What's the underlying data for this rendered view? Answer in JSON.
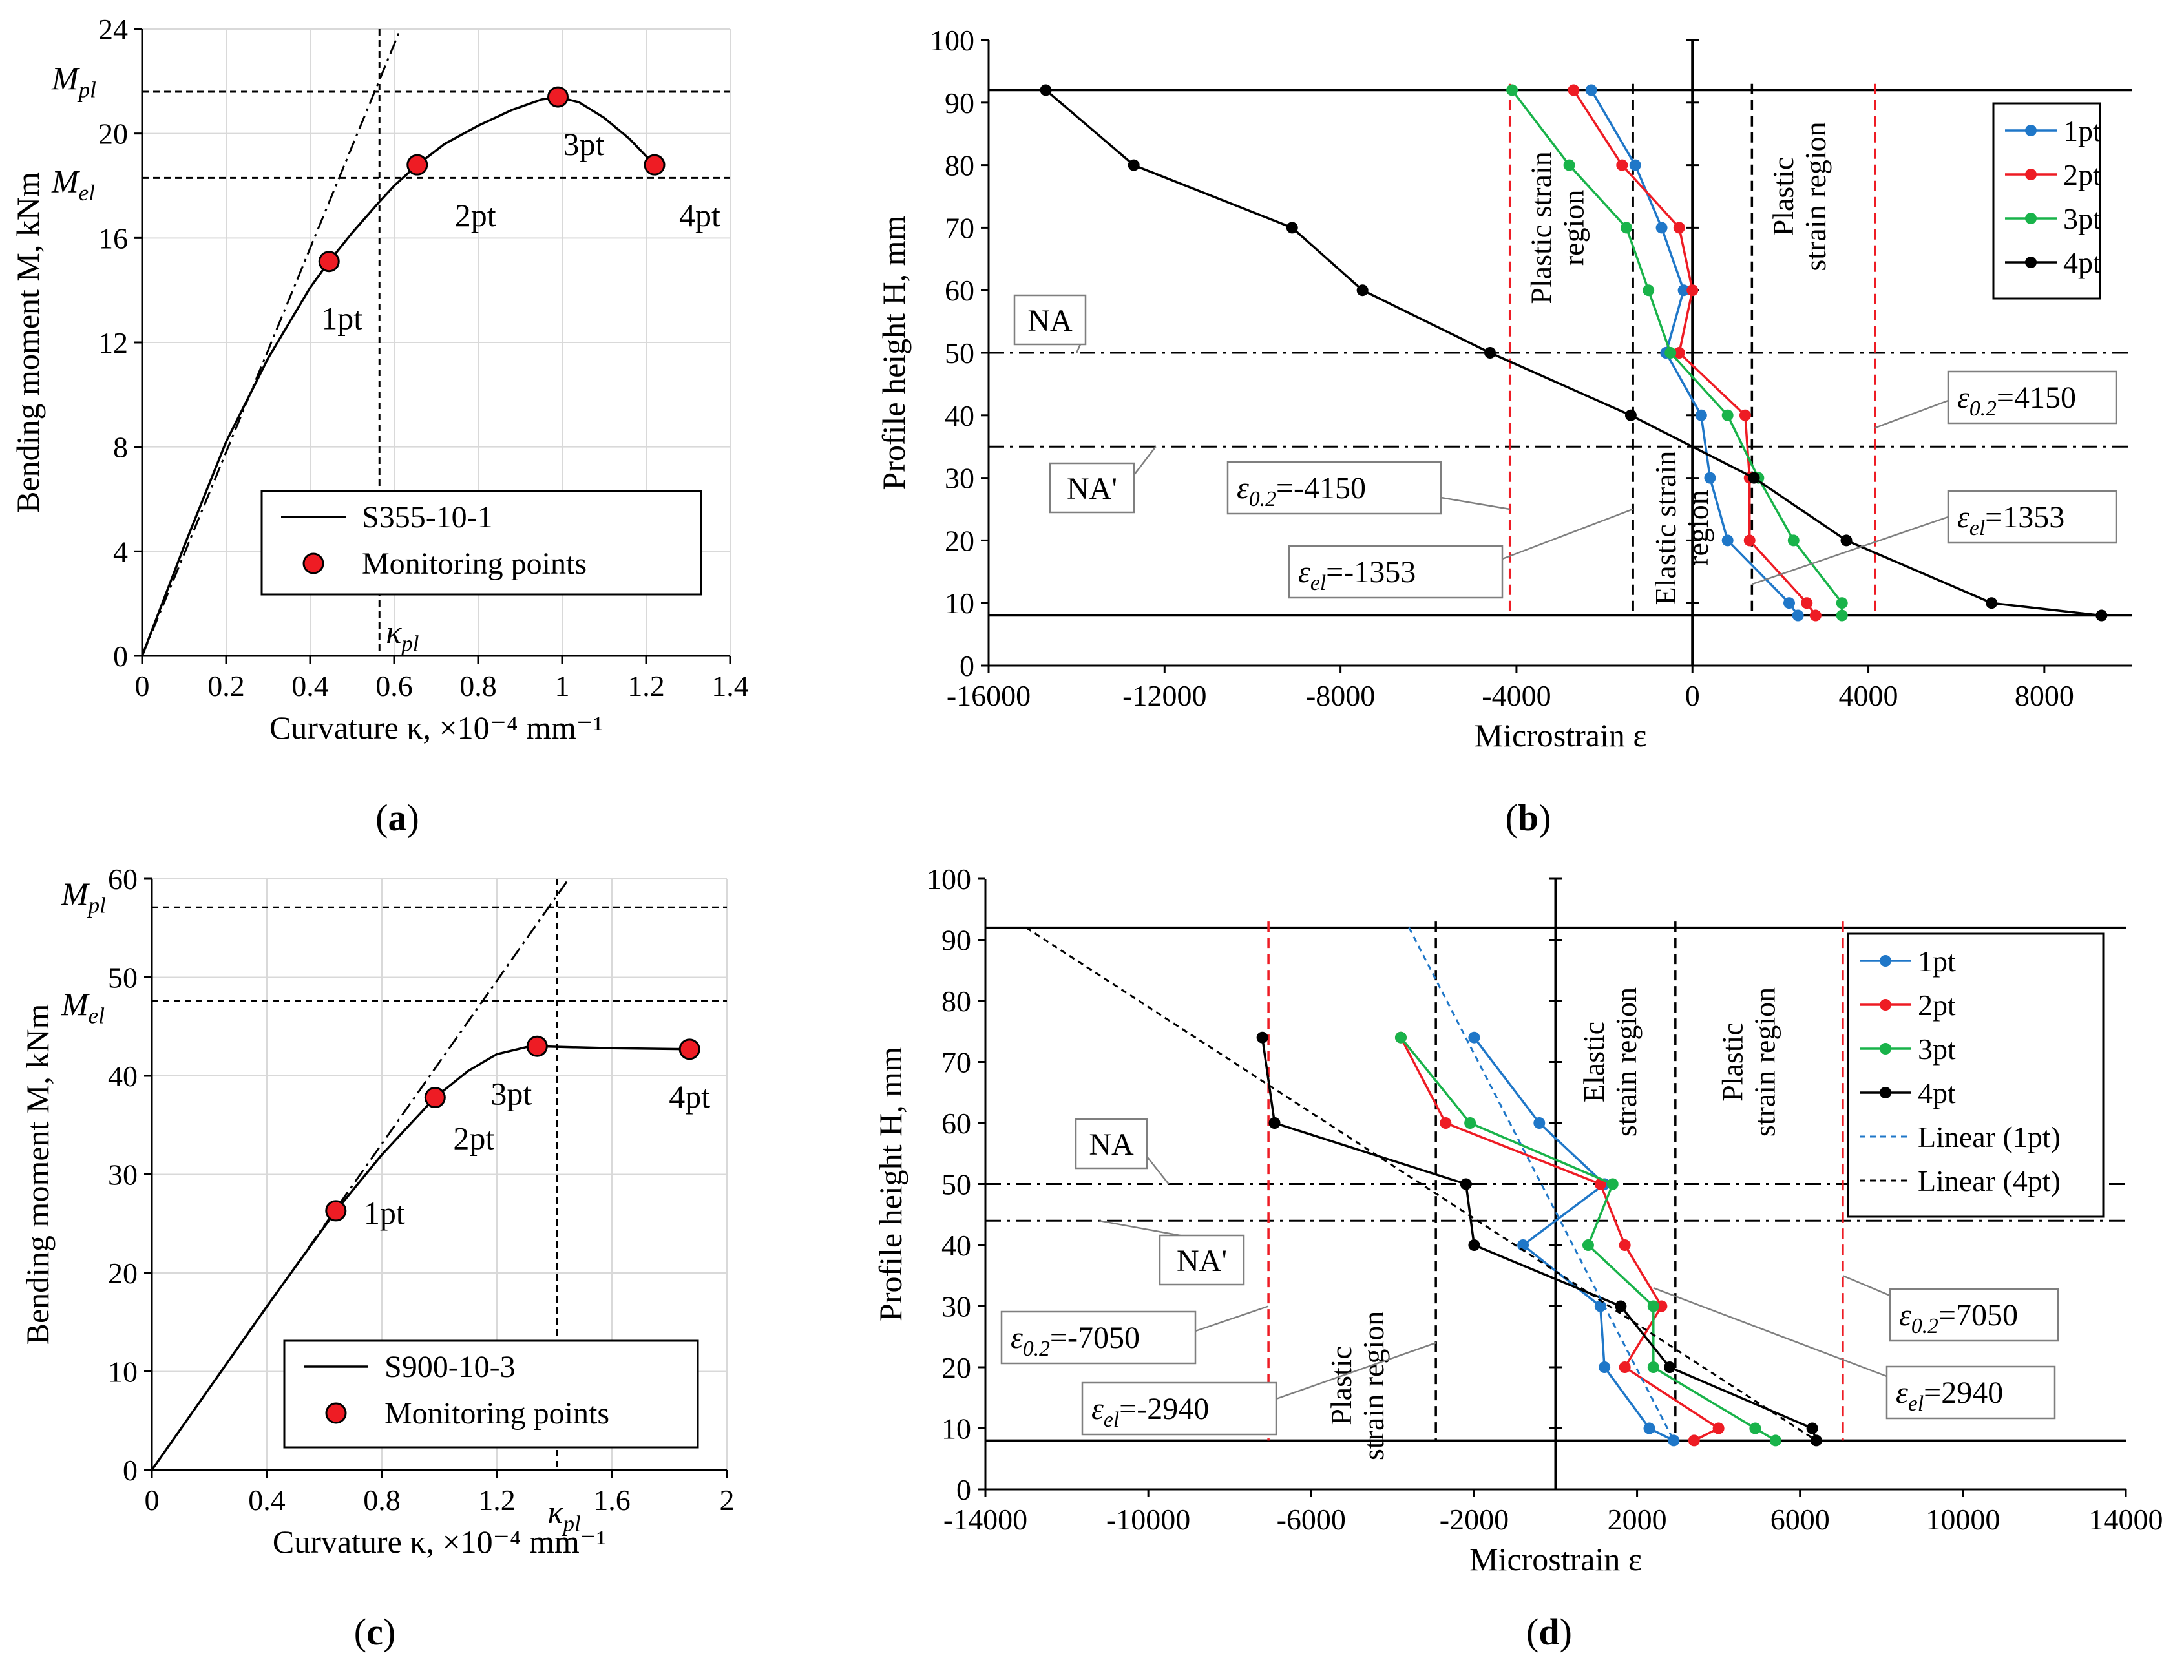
{
  "chart_data": [
    {
      "panel": "(a)",
      "type": "line",
      "xlabel": "Curvature κ, ×10⁻⁴ mm⁻¹",
      "ylabel": "Bending moment M, kNm",
      "xlim": [
        0,
        1.4
      ],
      "ylim": [
        0,
        24
      ],
      "xticks": [
        "0",
        "0.2",
        "0.4",
        "0.6",
        "0.8",
        "1",
        "1.2",
        "1.4"
      ],
      "yticks": [
        "0",
        "4",
        "8",
        "12",
        "16",
        "20",
        "24"
      ],
      "grid": true,
      "legend": {
        "position": "bottom-right",
        "line_label": "S355-10-1",
        "marker_label": "Monitoring points"
      },
      "series": [
        {
          "name": "S355-10-1",
          "x": [
            0,
            0.1,
            0.2,
            0.3,
            0.4,
            0.445,
            0.5,
            0.56,
            0.6,
            0.655,
            0.72,
            0.8,
            0.88,
            0.95,
            0.99,
            1.04,
            1.1,
            1.16,
            1.22
          ],
          "y": [
            0,
            4.2,
            8.2,
            11.4,
            14.1,
            15.1,
            16.2,
            17.3,
            18.0,
            18.8,
            19.6,
            20.3,
            20.9,
            21.3,
            21.4,
            21.2,
            20.6,
            19.8,
            18.8
          ]
        }
      ],
      "monitoring_points": {
        "x": [
          0.445,
          0.655,
          0.99,
          1.22
        ],
        "y": [
          15.1,
          18.8,
          21.4,
          18.8
        ],
        "labels": [
          "1pt",
          "2pt",
          "3pt",
          "4pt"
        ],
        "color": "#ee1c24"
      },
      "elastic_line": {
        "x": [
          0,
          0.615
        ],
        "y": [
          0,
          24
        ]
      },
      "annotations": {
        "Mpl_label": "M",
        "Mpl_sub": "pl",
        "Mpl": 21.6,
        "Mel_label": "M",
        "Mel_sub": "el",
        "Mel": 18.3,
        "kpl_label": "κ",
        "kpl_sub": "pl",
        "kpl": 0.565
      },
      "caption": "a"
    },
    {
      "panel": "(b)",
      "type": "line",
      "xlabel": "Microstrain ε",
      "ylabel": "Profile height H, mm",
      "xlim": [
        -16000,
        10000
      ],
      "ylim": [
        0,
        100
      ],
      "xticks": [
        "-16000",
        "-12000",
        "-8000",
        "-4000",
        "0",
        "4000",
        "8000"
      ],
      "yticks": [
        "0",
        "10",
        "20",
        "30",
        "40",
        "50",
        "60",
        "70",
        "80",
        "90",
        "100"
      ],
      "legend": {
        "position": "top-right"
      },
      "series": [
        {
          "name": "1pt",
          "color": "#1f77c8",
          "x": [
            2400,
            2200,
            800,
            400,
            200,
            -600,
            -200,
            -700,
            -1300,
            -2300
          ],
          "y": [
            8,
            10,
            20,
            30,
            40,
            50,
            60,
            70,
            80,
            92
          ]
        },
        {
          "name": "2pt",
          "color": "#ee1c24",
          "x": [
            2800,
            2600,
            1300,
            1300,
            1200,
            -300,
            0,
            -300,
            -1600,
            -2700
          ],
          "y": [
            8,
            10,
            20,
            30,
            40,
            50,
            60,
            70,
            80,
            92
          ]
        },
        {
          "name": "3pt",
          "color": "#19b34a",
          "x": [
            3400,
            3400,
            2300,
            1500,
            800,
            -500,
            -1000,
            -1500,
            -2800,
            -4100
          ],
          "y": [
            8,
            10,
            20,
            30,
            40,
            50,
            60,
            70,
            80,
            92
          ]
        },
        {
          "name": "4pt",
          "color": "#000000",
          "x": [
            9300,
            6800,
            3500,
            1400,
            -1400,
            -4600,
            -7500,
            -9100,
            -12700,
            -14700
          ],
          "y": [
            8,
            10,
            20,
            30,
            40,
            50,
            60,
            70,
            80,
            92
          ]
        }
      ],
      "hlines": [
        8,
        92
      ],
      "na_lines": {
        "NA": 50,
        "NA_prime": 35,
        "NA_label": "NA",
        "NA_prime_label": "NA'"
      },
      "strain_limits": {
        "e02": 4150,
        "eel": 1353,
        "e02_neg_label": "=-4150",
        "e02_pos_label": "=4150",
        "eel_neg_label": "=-1353",
        "eel_pos_label": "=1353"
      },
      "region_labels": {
        "plastic_left": [
          "Plastic strain",
          "region"
        ],
        "elastic": [
          "Elastic strain",
          "region"
        ],
        "plastic_right": [
          "Plastic",
          "strain region"
        ]
      },
      "caption": "b"
    },
    {
      "panel": "(c)",
      "type": "line",
      "xlabel": "Curvature κ, ×10⁻⁴ mm⁻¹",
      "ylabel": "Bending moment M, kNm",
      "xlim": [
        0,
        2
      ],
      "ylim": [
        0,
        60
      ],
      "xticks": [
        "0",
        "0.4",
        "0.8",
        "1.2",
        "1.6",
        "2"
      ],
      "yticks": [
        "0",
        "10",
        "20",
        "30",
        "40",
        "50",
        "60"
      ],
      "grid": true,
      "legend": {
        "position": "bottom-right",
        "line_label": "S900-10-3",
        "marker_label": "Monitoring points"
      },
      "series": [
        {
          "name": "S900-10-3",
          "x": [
            0,
            0.2,
            0.4,
            0.64,
            0.8,
            0.985,
            1.1,
            1.2,
            1.3,
            1.34,
            1.6,
            1.87
          ],
          "y": [
            0,
            8.3,
            16.6,
            26.3,
            32.0,
            37.8,
            40.5,
            42.2,
            42.9,
            43.0,
            42.8,
            42.7
          ]
        }
      ],
      "monitoring_points": {
        "x": [
          0.64,
          0.985,
          1.34,
          1.87
        ],
        "y": [
          26.3,
          37.8,
          43.0,
          42.7
        ],
        "labels": [
          "1pt",
          "2pt",
          "3pt",
          "4pt"
        ],
        "color": "#ee1c24"
      },
      "elastic_line": {
        "x": [
          0,
          1.45
        ],
        "y": [
          0,
          60
        ]
      },
      "annotations": {
        "Mpl_label": "M",
        "Mpl_sub": "pl",
        "Mpl": 57.1,
        "Mel_label": "M",
        "Mel_sub": "el",
        "Mel": 47.6,
        "kpl_label": "κ",
        "kpl_sub": "pl",
        "kpl": 1.41
      },
      "caption": "c"
    },
    {
      "panel": "(d)",
      "type": "line",
      "xlabel": "Microstrain ε",
      "ylabel": "Profile height H, mm",
      "xlim": [
        -14000,
        14000
      ],
      "ylim": [
        0,
        100
      ],
      "xticks": [
        "-14000",
        "-10000",
        "-6000",
        "-2000",
        "2000",
        "6000",
        "10000",
        "14000"
      ],
      "yticks": [
        "0",
        "10",
        "20",
        "30",
        "40",
        "50",
        "60",
        "70",
        "80",
        "90",
        "100"
      ],
      "legend": {
        "position": "top-right"
      },
      "series": [
        {
          "name": "1pt",
          "color": "#1f77c8",
          "x": [
            2900,
            2300,
            1200,
            1100,
            -800,
            1200,
            -400,
            -2000
          ],
          "y": [
            8,
            10,
            20,
            30,
            40,
            50,
            60,
            74
          ]
        },
        {
          "name": "2pt",
          "color": "#ee1c24",
          "x": [
            3400,
            4000,
            1700,
            2600,
            1700,
            1100,
            -2700,
            -3800
          ],
          "y": [
            8,
            10,
            20,
            30,
            40,
            50,
            60,
            74
          ]
        },
        {
          "name": "3pt",
          "color": "#19b34a",
          "x": [
            5400,
            4900,
            2400,
            2400,
            800,
            1400,
            -2100,
            -3800
          ],
          "y": [
            8,
            10,
            20,
            30,
            40,
            50,
            60,
            74
          ]
        },
        {
          "name": "4pt",
          "color": "#000000",
          "x": [
            6400,
            6300,
            2800,
            1600,
            -2000,
            -2200,
            -6900,
            -7200
          ],
          "y": [
            8,
            10,
            20,
            30,
            40,
            50,
            60,
            74
          ]
        },
        {
          "name": "Linear (1pt)",
          "color": "#1f77c8",
          "dashed": true,
          "x": [
            -3600,
            2900
          ],
          "y": [
            92,
            8
          ]
        },
        {
          "name": "Linear (4pt)",
          "color": "#000000",
          "dashed": true,
          "x": [
            -13000,
            6400
          ],
          "y": [
            92,
            8
          ]
        }
      ],
      "hlines": [
        8,
        92
      ],
      "na_lines": {
        "NA": 50,
        "NA_prime": 44,
        "NA_label": "NA",
        "NA_prime_label": "NA'"
      },
      "strain_limits": {
        "e02": 7050,
        "eel": 2940,
        "e02_neg_label": "=-7050",
        "e02_pos_label": "=7050",
        "eel_neg_label": "=-2940",
        "eel_pos_label": "=2940"
      },
      "region_labels": {
        "plastic_left": [
          "Plastic",
          "strain region"
        ],
        "elastic": [
          "Elastic",
          "strain region"
        ],
        "plastic_right": [
          "Plastic",
          "strain region"
        ]
      },
      "caption": "d"
    }
  ]
}
